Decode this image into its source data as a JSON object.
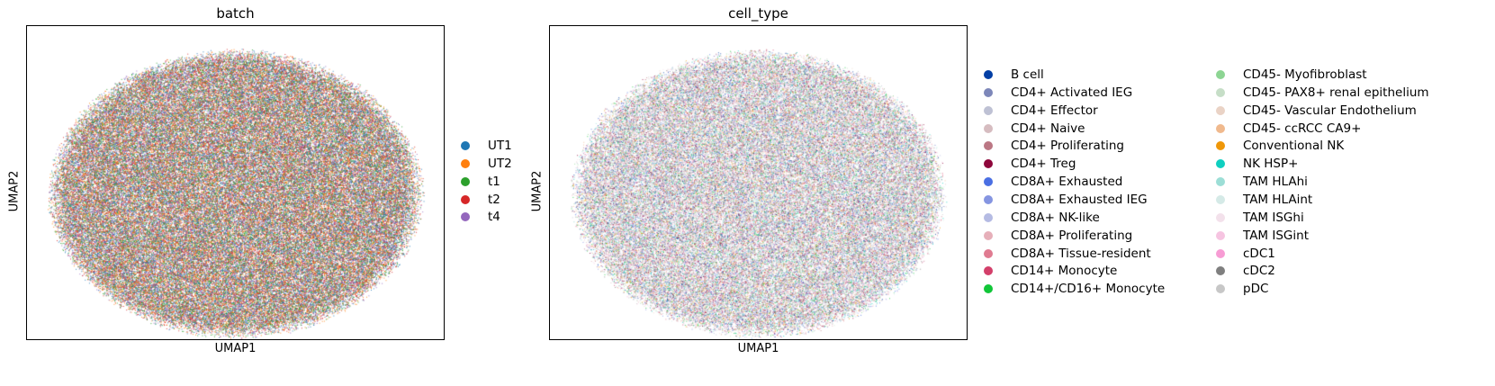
{
  "chart_data": [
    {
      "type": "scatter",
      "title": "batch",
      "xlabel": "UMAP1",
      "ylabel": "UMAP2",
      "grid": false,
      "legend_placement": "right",
      "series": [
        {
          "name": "UT1",
          "color": "#1f77b4"
        },
        {
          "name": "UT2",
          "color": "#ff7f0e"
        },
        {
          "name": "t1",
          "color": "#2ca02c"
        },
        {
          "name": "t2",
          "color": "#d62728"
        },
        {
          "name": "t4",
          "color": "#9467bd"
        }
      ]
    },
    {
      "type": "scatter",
      "title": "cell_type",
      "xlabel": "UMAP1",
      "ylabel": "UMAP2",
      "grid": false,
      "legend_placement": "right",
      "series": [
        {
          "name": "B cell",
          "color": "#023fa5"
        },
        {
          "name": "CD4+ Activated IEG",
          "color": "#7d87b9"
        },
        {
          "name": "CD4+ Effector",
          "color": "#bec1d4"
        },
        {
          "name": "CD4+ Naive",
          "color": "#d6bcc0"
        },
        {
          "name": "CD4+ Proliferating",
          "color": "#bb7784"
        },
        {
          "name": "CD4+ Treg",
          "color": "#8e063b"
        },
        {
          "name": "CD8A+ Exhausted",
          "color": "#4a6fe3"
        },
        {
          "name": "CD8A+ Exhausted IEG",
          "color": "#8595e1"
        },
        {
          "name": "CD8A+ NK-like",
          "color": "#b5bbe3"
        },
        {
          "name": "CD8A+ Proliferating",
          "color": "#e6afb9"
        },
        {
          "name": "CD8A+ Tissue-resident",
          "color": "#e07b91"
        },
        {
          "name": "CD14+ Monocyte",
          "color": "#d33f6a"
        },
        {
          "name": "CD14+/CD16+ Monocyte",
          "color": "#11c638"
        },
        {
          "name": "CD45- Myofibroblast",
          "color": "#8dd593"
        },
        {
          "name": "CD45- PAX8+ renal epithelium",
          "color": "#c6dec7"
        },
        {
          "name": "CD45- Vascular Endothelium",
          "color": "#ead3c6"
        },
        {
          "name": "CD45- ccRCC CA9+",
          "color": "#f0b98d"
        },
        {
          "name": "Conventional NK",
          "color": "#ef9708"
        },
        {
          "name": "NK HSP+",
          "color": "#0fcfc0"
        },
        {
          "name": "TAM HLAhi",
          "color": "#9cded6"
        },
        {
          "name": "TAM HLAint",
          "color": "#d5eae7"
        },
        {
          "name": "TAM ISGhi",
          "color": "#f3e1eb"
        },
        {
          "name": "TAM ISGint",
          "color": "#f6c4e1"
        },
        {
          "name": "cDC1",
          "color": "#f79cd4"
        },
        {
          "name": "cDC2",
          "color": "#7f7f7f"
        },
        {
          "name": "pDC",
          "color": "#c7c7c7"
        }
      ]
    }
  ]
}
